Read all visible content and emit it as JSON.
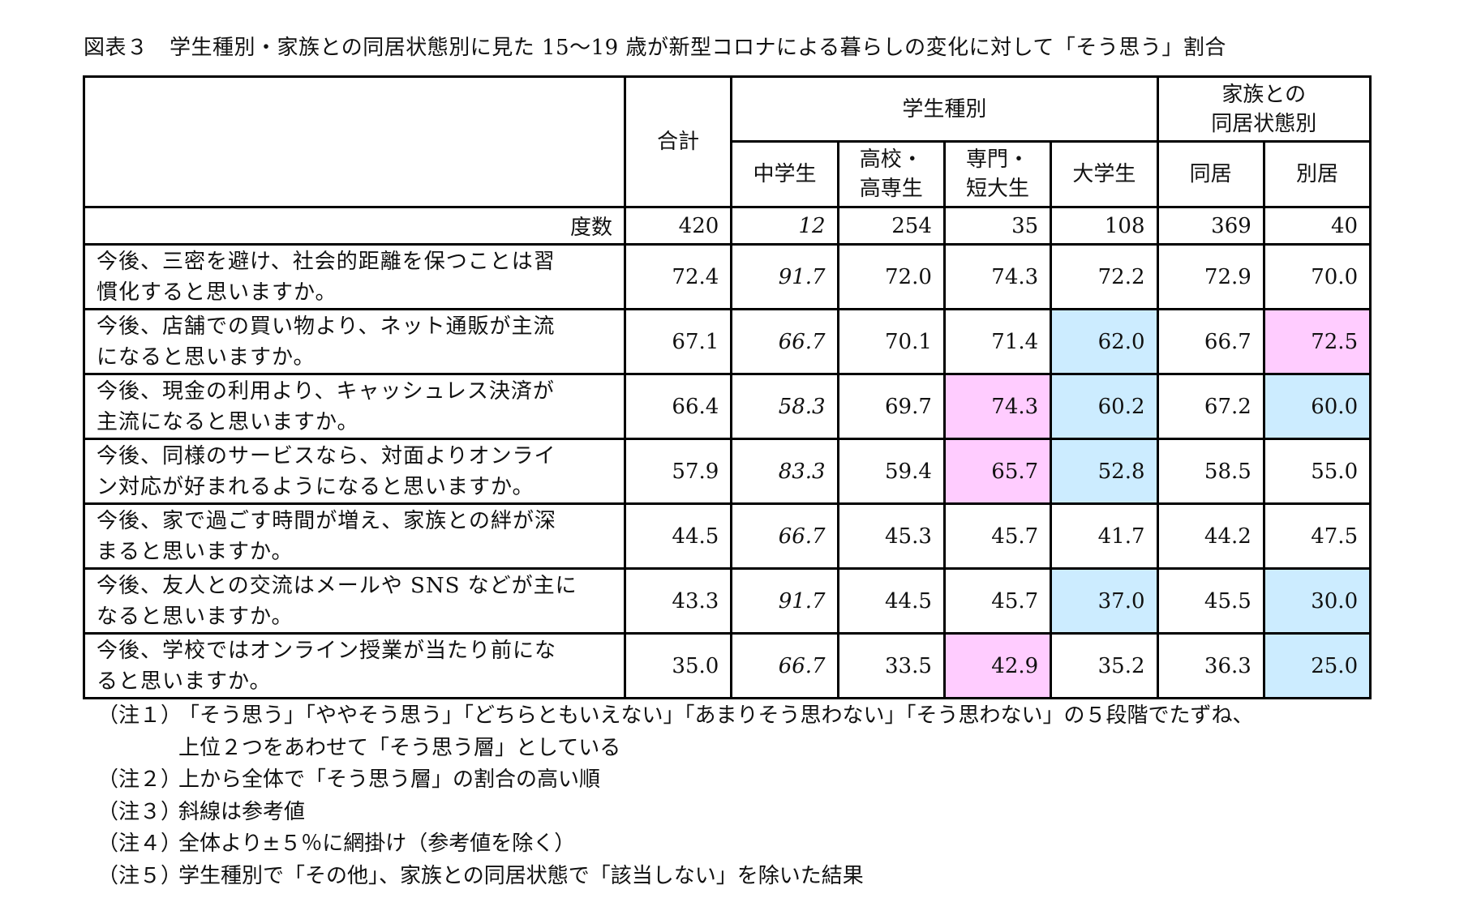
{
  "title": "図表３　学生種別・家族との同居状態別に見た 15～19 歳が新型コロナによる暮らしの変化に対して「そう思う」割合",
  "table": {
    "header": {
      "total": "合計",
      "group_student": "学生種別",
      "group_family_line1": "家族との",
      "group_family_line2": "同居状態別",
      "columns": [
        {
          "line1": "中学生",
          "line2": ""
        },
        {
          "line1": "高校・",
          "line2": "高専生"
        },
        {
          "line1": "専門・",
          "line2": "短大生"
        },
        {
          "line1": "大学生",
          "line2": ""
        },
        {
          "line1": "同居",
          "line2": ""
        },
        {
          "line1": "別居",
          "line2": ""
        }
      ]
    },
    "count_row": {
      "label": "度数",
      "values": [
        "420",
        "12",
        "254",
        "35",
        "108",
        "369",
        "40"
      ]
    },
    "rows": [
      {
        "line1": "今後、三密を避け、社会的距離を保つことは習",
        "line2": "慣化すると思いますか。",
        "values": [
          "72.4",
          "91.7",
          "72.0",
          "74.3",
          "72.2",
          "72.9",
          "70.0"
        ],
        "shade": [
          "",
          "",
          "",
          "",
          "",
          "",
          ""
        ]
      },
      {
        "line1": "今後、店舗での買い物より、ネット通販が主流",
        "line2": "になると思いますか。",
        "values": [
          "67.1",
          "66.7",
          "70.1",
          "71.4",
          "62.0",
          "66.7",
          "72.5"
        ],
        "shade": [
          "",
          "",
          "",
          "",
          "blue",
          "",
          "pink"
        ]
      },
      {
        "line1": "今後、現金の利用より、キャッシュレス決済が",
        "line2": "主流になると思いますか。",
        "values": [
          "66.4",
          "58.3",
          "69.7",
          "74.3",
          "60.2",
          "67.2",
          "60.0"
        ],
        "shade": [
          "",
          "",
          "",
          "pink",
          "blue",
          "",
          "blue"
        ]
      },
      {
        "line1": "今後、同様のサービスなら、対面よりオンライ",
        "line2": "ン対応が好まれるようになると思いますか。",
        "values": [
          "57.9",
          "83.3",
          "59.4",
          "65.7",
          "52.8",
          "58.5",
          "55.0"
        ],
        "shade": [
          "",
          "",
          "",
          "pink",
          "blue",
          "",
          ""
        ]
      },
      {
        "line1": "今後、家で過ごす時間が増え、家族との絆が深",
        "line2": "まると思いますか。",
        "values": [
          "44.5",
          "66.7",
          "45.3",
          "45.7",
          "41.7",
          "44.2",
          "47.5"
        ],
        "shade": [
          "",
          "",
          "",
          "",
          "",
          "",
          ""
        ]
      },
      {
        "line1": "今後、友人との交流はメールや SNS などが主に",
        "line2": "なると思いますか。",
        "values": [
          "43.3",
          "91.7",
          "44.5",
          "45.7",
          "37.0",
          "45.5",
          "30.0"
        ],
        "shade": [
          "",
          "",
          "",
          "",
          "blue",
          "",
          "blue"
        ]
      },
      {
        "line1": "今後、学校ではオンライン授業が当たり前にな",
        "line2": "ると思いますか。",
        "values": [
          "35.0",
          "66.7",
          "33.5",
          "42.9",
          "35.2",
          "36.3",
          "25.0"
        ],
        "shade": [
          "",
          "",
          "",
          "pink",
          "",
          "",
          "blue"
        ]
      }
    ],
    "italic_column_index": 1,
    "colors": {
      "pink": "#FFCCFF",
      "blue": "#CCECFF"
    }
  },
  "notes": [
    {
      "label": "（注１）",
      "text": "「そう思う」「ややそう思う」「どちらともいえない」「あまりそう思わない」「そう思わない」の５段階でたずね、"
    },
    {
      "label": "",
      "text": "上位２つをあわせて「そう思う層」としている"
    },
    {
      "label": "（注２）",
      "text": "上から全体で「そう思う層」の割合の高い順"
    },
    {
      "label": "（注３）",
      "text": "斜線は参考値"
    },
    {
      "label": "（注４）",
      "text": "全体より±５％に網掛け（参考値を除く）"
    },
    {
      "label": "（注５）",
      "text": "学生種別で「その他」、家族との同居状態で「該当しない」を除いた結果"
    }
  ]
}
